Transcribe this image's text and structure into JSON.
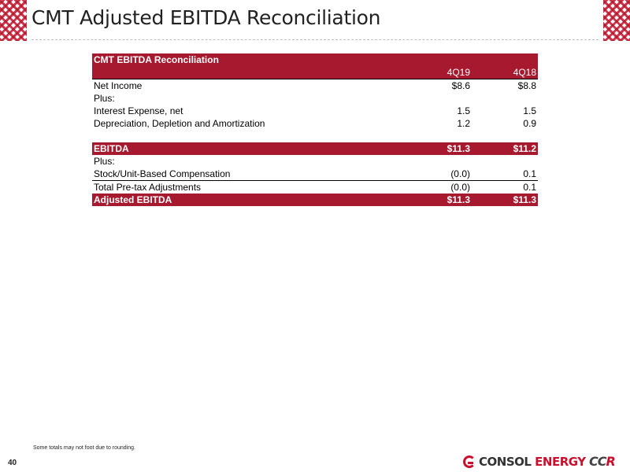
{
  "page": {
    "title": "CMT Adjusted EBITDA Reconciliation",
    "page_number": "40",
    "footnote": "Some totals may not foot due to rounding."
  },
  "logos": {
    "consol_word1": "CONSOL",
    "consol_word2": "ENERGY",
    "ccr_c": "CC",
    "ccr_r": "R"
  },
  "table": {
    "title": "CMT EBITDA Reconciliation",
    "columns": [
      "4Q19",
      "4Q18"
    ],
    "rows": [
      {
        "label": "Net Income",
        "q19": "$8.6",
        "q18": "$8.8"
      },
      {
        "label": "Plus:",
        "q19": "",
        "q18": ""
      },
      {
        "label": "Interest Expense, net",
        "q19": "1.5",
        "q18": "1.5"
      },
      {
        "label": "Depreciation, Depletion and Amortization",
        "q19": "1.2",
        "q18": "0.9"
      }
    ],
    "ebitda": {
      "label": "EBITDA",
      "q19": "$11.3",
      "q18": "$11.2"
    },
    "rows2": [
      {
        "label": "Plus:",
        "q19": "",
        "q18": ""
      },
      {
        "label": "Stock/Unit-Based Compensation",
        "q19": "(0.0)",
        "q18": "0.1"
      },
      {
        "label": "Total Pre-tax Adjustments",
        "q19": "(0.0)",
        "q18": "0.1"
      }
    ],
    "adjusted": {
      "label": "Adjusted EBITDA",
      "q19": "$11.3",
      "q18": "$11.3"
    }
  },
  "colors": {
    "brand_red": "#a6192e",
    "accent_red": "#c8102e"
  }
}
